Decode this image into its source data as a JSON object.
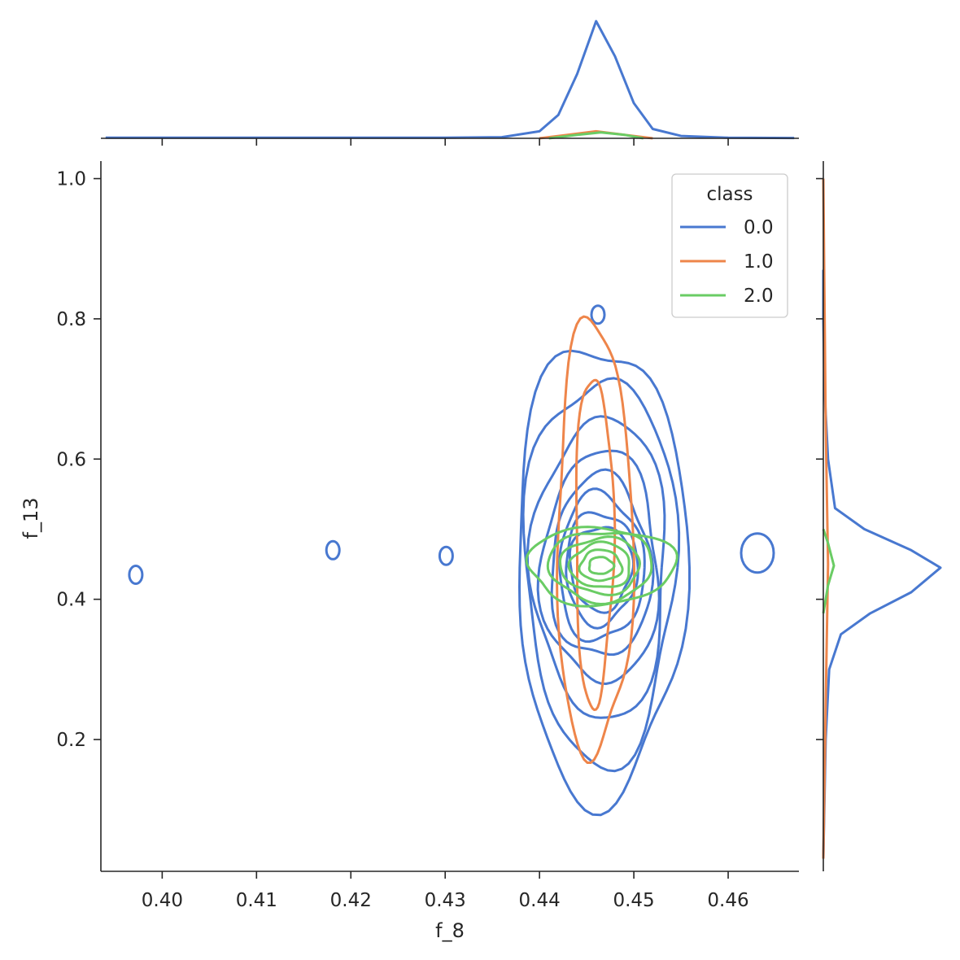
{
  "chart_data": {
    "type": "kde-jointplot",
    "xlabel": "f_8",
    "ylabel": "f_13",
    "xlim": [
      0.3935,
      0.4675
    ],
    "ylim": [
      0.012,
      1.025
    ],
    "x_ticks": [
      0.4,
      0.41,
      0.42,
      0.43,
      0.44,
      0.45,
      0.46
    ],
    "x_tick_labels": [
      "0.40",
      "0.41",
      "0.42",
      "0.43",
      "0.44",
      "0.45",
      "0.46"
    ],
    "y_ticks": [
      0.2,
      0.4,
      0.6,
      0.8,
      1.0
    ],
    "y_tick_labels": [
      "0.2",
      "0.4",
      "0.6",
      "0.8",
      "1.0"
    ],
    "grid": false,
    "legend": {
      "title": "class",
      "position": "top-right"
    },
    "series": [
      {
        "name": "0.0",
        "color": "#4878d0",
        "center": [
          0.4465,
          0.445
        ],
        "contour_levels": [
          {
            "rx": 0.0033,
            "ry": 0.06
          },
          {
            "rx": 0.0038,
            "ry": 0.08
          },
          {
            "rx": 0.0045,
            "ry": 0.105
          },
          {
            "rx": 0.0053,
            "ry": 0.13
          },
          {
            "rx": 0.0062,
            "ry": 0.165
          },
          {
            "rx": 0.0071,
            "ry": 0.215
          },
          {
            "rx": 0.008,
            "ry": 0.275
          },
          {
            "rx": 0.009,
            "ry": 0.325
          }
        ],
        "islands": [
          [
            0.3972,
            0.435
          ],
          [
            0.4181,
            0.47
          ],
          [
            0.4301,
            0.462
          ],
          [
            0.4462,
            0.806
          ],
          [
            0.4631,
            0.466
          ]
        ],
        "marginal_x": [
          [
            0.394,
            0.005
          ],
          [
            0.4,
            0.005
          ],
          [
            0.41,
            0.005
          ],
          [
            0.42,
            0.005
          ],
          [
            0.43,
            0.005
          ],
          [
            0.436,
            0.01
          ],
          [
            0.44,
            0.06
          ],
          [
            0.442,
            0.2
          ],
          [
            0.444,
            0.55
          ],
          [
            0.446,
            1.0
          ],
          [
            0.448,
            0.7
          ],
          [
            0.45,
            0.3
          ],
          [
            0.452,
            0.08
          ],
          [
            0.455,
            0.02
          ],
          [
            0.46,
            0.005
          ],
          [
            0.467,
            0.003
          ]
        ],
        "marginal_y": [
          [
            0.03,
            0.0
          ],
          [
            0.2,
            0.02
          ],
          [
            0.3,
            0.05
          ],
          [
            0.35,
            0.15
          ],
          [
            0.38,
            0.4
          ],
          [
            0.41,
            0.75
          ],
          [
            0.445,
            1.0
          ],
          [
            0.47,
            0.75
          ],
          [
            0.5,
            0.35
          ],
          [
            0.53,
            0.1
          ],
          [
            0.6,
            0.04
          ],
          [
            0.7,
            0.01
          ],
          [
            0.8,
            0.0
          ],
          [
            0.87,
            0.0
          ]
        ]
      },
      {
        "name": "1.0",
        "color": "#ee854a",
        "center": [
          0.4458,
          0.485
        ],
        "contour_levels": [
          {
            "rx": 0.002,
            "ry": 0.235
          },
          {
            "rx": 0.004,
            "ry": 0.31
          }
        ],
        "marginal_x": [
          [
            0.44,
            0.0
          ],
          [
            0.443,
            0.03
          ],
          [
            0.446,
            0.06
          ],
          [
            0.449,
            0.03
          ],
          [
            0.452,
            0.0
          ]
        ],
        "marginal_y": [
          [
            0.03,
            0.0
          ],
          [
            0.25,
            0.02
          ],
          [
            0.45,
            0.04
          ],
          [
            0.65,
            0.02
          ],
          [
            1.0,
            0.0
          ]
        ]
      },
      {
        "name": "2.0",
        "color": "#6acc64",
        "center": [
          0.4465,
          0.448
        ],
        "contour_levels": [
          {
            "rx": 0.0013,
            "ry": 0.012
          },
          {
            "rx": 0.0022,
            "ry": 0.022
          },
          {
            "rx": 0.0032,
            "ry": 0.032
          },
          {
            "rx": 0.0042,
            "ry": 0.04
          },
          {
            "rx": 0.0055,
            "ry": 0.05
          },
          {
            "rx": 0.0078,
            "ry": 0.055
          }
        ],
        "marginal_x": [
          [
            0.441,
            0.0
          ],
          [
            0.444,
            0.03
          ],
          [
            0.4465,
            0.05
          ],
          [
            0.449,
            0.03
          ],
          [
            0.451,
            0.0
          ]
        ],
        "marginal_y": [
          [
            0.38,
            0.0
          ],
          [
            0.42,
            0.04
          ],
          [
            0.448,
            0.09
          ],
          [
            0.48,
            0.04
          ],
          [
            0.5,
            0.0
          ]
        ]
      }
    ]
  }
}
